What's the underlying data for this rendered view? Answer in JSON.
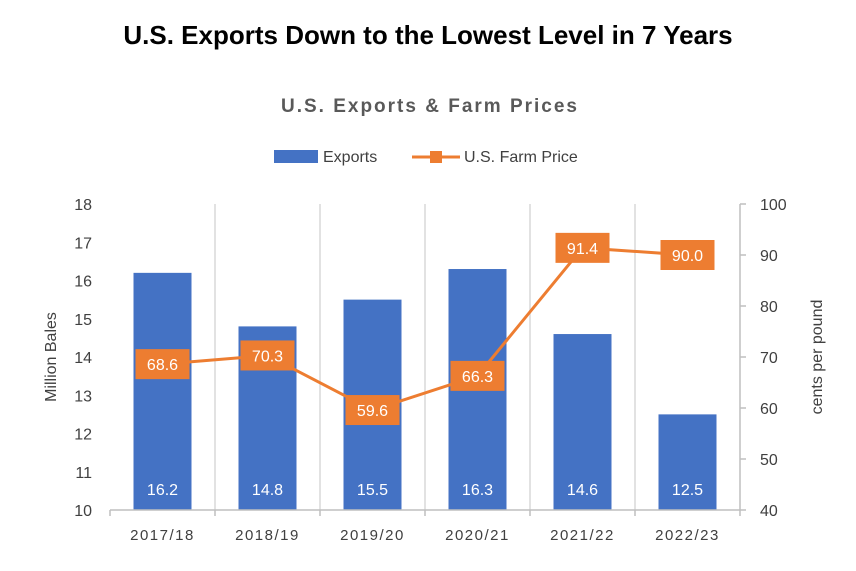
{
  "page_title": "U.S. Exports Down to the Lowest Level in 7 Years",
  "chart_data": {
    "type": "bar+line",
    "title": "U.S. Exports & Farm Prices",
    "categories": [
      "2017/18",
      "2018/19",
      "2019/20",
      "2020/21",
      "2021/22",
      "2022/23"
    ],
    "series": [
      {
        "name": "Exports",
        "type": "bar",
        "axis": "left",
        "values": [
          16.2,
          14.8,
          15.5,
          16.3,
          14.6,
          12.5
        ],
        "color": "#4472C4"
      },
      {
        "name": "U.S. Farm Price",
        "type": "line",
        "axis": "right",
        "values": [
          68.6,
          70.3,
          59.6,
          66.3,
          91.4,
          90.0
        ],
        "color": "#ED7D31"
      }
    ],
    "ylabel": "Million Bales",
    "y2label": "cents per pound",
    "ylim": [
      10,
      18
    ],
    "y2lim": [
      40,
      100
    ],
    "yticks": [
      10,
      11,
      12,
      13,
      14,
      15,
      16,
      17,
      18
    ],
    "y2ticks": [
      40,
      50,
      60,
      70,
      80,
      90,
      100
    ],
    "legend": "top",
    "grid": "vertical"
  }
}
